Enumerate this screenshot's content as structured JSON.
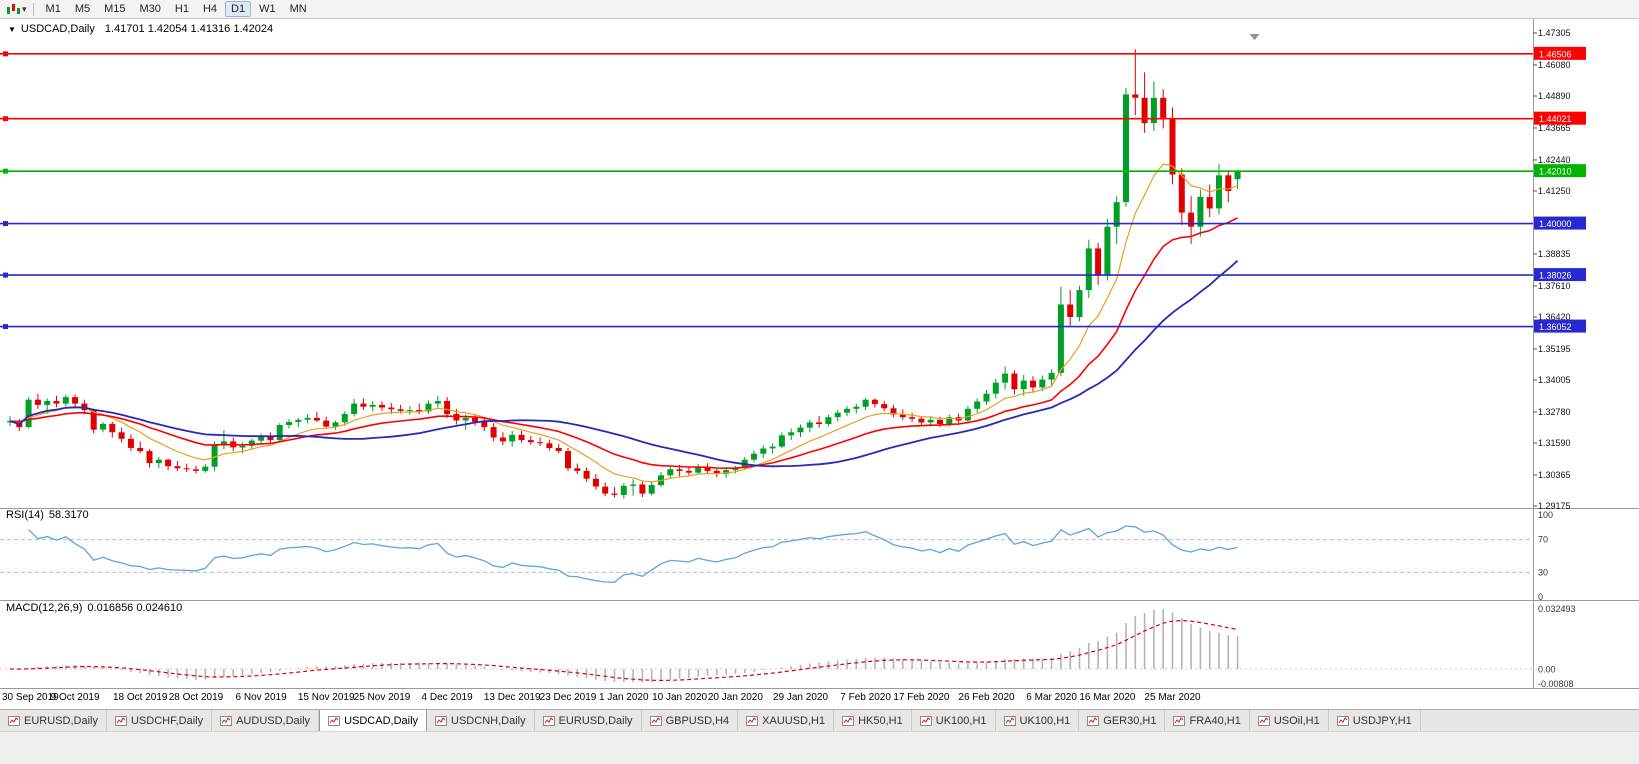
{
  "icons": {
    "chart_menu": "▼",
    "dropdown_caret": "▾"
  },
  "toolbar": {
    "timeframes": [
      {
        "label": "M1",
        "active": false
      },
      {
        "label": "M5",
        "active": false
      },
      {
        "label": "M15",
        "active": false
      },
      {
        "label": "M30",
        "active": false
      },
      {
        "label": "H1",
        "active": false
      },
      {
        "label": "H4",
        "active": false
      },
      {
        "label": "D1",
        "active": true
      },
      {
        "label": "W1",
        "active": false
      },
      {
        "label": "MN",
        "active": false
      }
    ]
  },
  "chart": {
    "title": "USDCAD,Daily",
    "ohlc": "1.41701 1.42054 1.41316 1.42024"
  },
  "indicators": {
    "rsi": {
      "name": "RSI(14)",
      "value": "58.3170"
    },
    "macd": {
      "name": "MACD(12,26,9)",
      "value": "0.016856 0.024610"
    }
  },
  "chart_data": {
    "type": "candlestick",
    "symbol": "USDCAD",
    "timeframe": "Daily",
    "quote": {
      "open": 1.41701,
      "high": 1.42054,
      "low": 1.41316,
      "close": 1.42024
    },
    "up_color": "#00a028",
    "down_color": "#e00000",
    "price_axis": {
      "ticks": [
        "1.47305",
        "1.46080",
        "1.44890",
        "1.43665",
        "1.42440",
        "1.41250",
        "1.38835",
        "1.37610",
        "1.36420",
        "1.35195",
        "1.34005",
        "1.32780",
        "1.31590",
        "1.30365",
        "1.29175"
      ]
    },
    "horizontal_lines": [
      {
        "price": 1.46506,
        "label": "1.46506",
        "color": "#ff0000"
      },
      {
        "price": 1.44021,
        "label": "1.44021",
        "color": "#ff0000"
      },
      {
        "price": 1.4201,
        "label": "1.42010",
        "color": "#00b400"
      },
      {
        "price": 1.4,
        "label": "1.40000",
        "color": "#2828d0"
      },
      {
        "price": 1.38026,
        "label": "1.38026",
        "color": "#2828d0"
      },
      {
        "price": 1.36052,
        "label": "1.36052",
        "color": "#2828d0"
      }
    ],
    "moving_averages": [
      {
        "name": "ma-fast",
        "type": "ema",
        "period": 9,
        "color": "#e8a020",
        "width": 1.2
      },
      {
        "name": "ma-medium",
        "type": "ema",
        "period": 21,
        "color": "#ff0000",
        "width": 1.6
      },
      {
        "name": "ma-slow",
        "type": "sma",
        "period": 30,
        "color": "#2828bb",
        "width": 1.8
      }
    ],
    "x_axis": {
      "labels": [
        {
          "text": "30 Sep 2019",
          "index": 0
        },
        {
          "text": "9 Oct 2019",
          "index": 7
        },
        {
          "text": "18 Oct 2019",
          "index": 14
        },
        {
          "text": "28 Oct 2019",
          "index": 20
        },
        {
          "text": "6 Nov 2019",
          "index": 27
        },
        {
          "text": "15 Nov 2019",
          "index": 34
        },
        {
          "text": "25 Nov 2019",
          "index": 40
        },
        {
          "text": "4 Dec 2019",
          "index": 47
        },
        {
          "text": "13 Dec 2019",
          "index": 54
        },
        {
          "text": "23 Dec 2019",
          "index": 60
        },
        {
          "text": "1 Jan 2020",
          "index": 66
        },
        {
          "text": "10 Jan 2020",
          "index": 72
        },
        {
          "text": "20 Jan 2020",
          "index": 78
        },
        {
          "text": "29 Jan 2020",
          "index": 85
        },
        {
          "text": "7 Feb 2020",
          "index": 92
        },
        {
          "text": "17 Feb 2020",
          "index": 98
        },
        {
          "text": "26 Feb 2020",
          "index": 105
        },
        {
          "text": "6 Mar 2020",
          "index": 112
        },
        {
          "text": "16 Mar 2020",
          "index": 118
        },
        {
          "text": "25 Mar 2020",
          "index": 125
        }
      ]
    },
    "rsi_panel": {
      "label": "RSI(14)",
      "current": 58.317,
      "period": 14,
      "levels": [
        100,
        70,
        30,
        0
      ],
      "line_color": "#5aa7d8"
    },
    "macd_panel": {
      "label": "MACD(12,26,9)",
      "main": 0.016856,
      "signal": 0.02461,
      "fast": 12,
      "slow": 26,
      "signal_period": 9,
      "axis_labels": [
        "0.032493",
        "0.00",
        "-0.00808"
      ],
      "histogram_color": "#b4b4b4",
      "signal_color": "#e00000"
    },
    "candles": [
      [
        "2019-09-30",
        1.3238,
        1.3262,
        1.3224,
        1.3243
      ],
      [
        "2019-10-01",
        1.3243,
        1.3251,
        1.3205,
        1.322
      ],
      [
        "2019-10-02",
        1.322,
        1.3335,
        1.3215,
        1.3325
      ],
      [
        "2019-10-03",
        1.3325,
        1.3348,
        1.329,
        1.3305
      ],
      [
        "2019-10-04",
        1.3305,
        1.333,
        1.3271,
        1.332
      ],
      [
        "2019-10-07",
        1.332,
        1.334,
        1.3296,
        1.331
      ],
      [
        "2019-10-08",
        1.331,
        1.3345,
        1.33,
        1.3335
      ],
      [
        "2019-10-09",
        1.3335,
        1.3345,
        1.33,
        1.331
      ],
      [
        "2019-10-10",
        1.331,
        1.3325,
        1.327,
        1.3285
      ],
      [
        "2019-10-11",
        1.3285,
        1.329,
        1.3195,
        1.321
      ],
      [
        "2019-10-14",
        1.321,
        1.324,
        1.32,
        1.3232
      ],
      [
        "2019-10-15",
        1.3232,
        1.324,
        1.318,
        1.32
      ],
      [
        "2019-10-16",
        1.32,
        1.3218,
        1.316,
        1.3175
      ],
      [
        "2019-10-17",
        1.3175,
        1.3192,
        1.3128,
        1.314
      ],
      [
        "2019-10-18",
        1.314,
        1.3165,
        1.312,
        1.3128
      ],
      [
        "2019-10-21",
        1.3128,
        1.3135,
        1.3065,
        1.3082
      ],
      [
        "2019-10-22",
        1.3082,
        1.3105,
        1.3063,
        1.3095
      ],
      [
        "2019-10-23",
        1.3095,
        1.31,
        1.3055,
        1.307
      ],
      [
        "2019-10-24",
        1.307,
        1.309,
        1.3052,
        1.3062
      ],
      [
        "2019-10-25",
        1.3062,
        1.308,
        1.3048,
        1.3058
      ],
      [
        "2019-10-28",
        1.3058,
        1.3072,
        1.3042,
        1.3052
      ],
      [
        "2019-10-29",
        1.3052,
        1.3078,
        1.3045,
        1.3068
      ],
      [
        "2019-10-30",
        1.3068,
        1.3165,
        1.305,
        1.315
      ],
      [
        "2019-10-31",
        1.315,
        1.3208,
        1.3135,
        1.3165
      ],
      [
        "2019-11-01",
        1.3165,
        1.318,
        1.3128,
        1.3142
      ],
      [
        "2019-11-04",
        1.3142,
        1.316,
        1.312,
        1.3148
      ],
      [
        "2019-11-05",
        1.3148,
        1.3175,
        1.3135,
        1.3168
      ],
      [
        "2019-11-06",
        1.3168,
        1.3195,
        1.3155,
        1.3182
      ],
      [
        "2019-11-07",
        1.3182,
        1.32,
        1.3158,
        1.317
      ],
      [
        "2019-11-08",
        1.317,
        1.3235,
        1.3162,
        1.3228
      ],
      [
        "2019-11-11",
        1.3228,
        1.325,
        1.3215,
        1.324
      ],
      [
        "2019-11-12",
        1.324,
        1.3255,
        1.322,
        1.3248
      ],
      [
        "2019-11-13",
        1.3248,
        1.327,
        1.3235,
        1.3255
      ],
      [
        "2019-11-14",
        1.3255,
        1.3278,
        1.324,
        1.3245
      ],
      [
        "2019-11-15",
        1.3245,
        1.326,
        1.3215,
        1.3222
      ],
      [
        "2019-11-18",
        1.3222,
        1.3245,
        1.321,
        1.3238
      ],
      [
        "2019-11-19",
        1.3238,
        1.328,
        1.3225,
        1.327
      ],
      [
        "2019-11-20",
        1.327,
        1.3328,
        1.326,
        1.331
      ],
      [
        "2019-11-21",
        1.331,
        1.333,
        1.3285,
        1.3298
      ],
      [
        "2019-11-22",
        1.3298,
        1.332,
        1.328,
        1.3305
      ],
      [
        "2019-11-25",
        1.3305,
        1.3318,
        1.3282,
        1.3295
      ],
      [
        "2019-11-26",
        1.3295,
        1.3312,
        1.327,
        1.3288
      ],
      [
        "2019-11-27",
        1.3288,
        1.3305,
        1.3272,
        1.3282
      ],
      [
        "2019-11-28",
        1.3282,
        1.33,
        1.3268,
        1.3285
      ],
      [
        "2019-11-29",
        1.3285,
        1.331,
        1.327,
        1.328
      ],
      [
        "2019-12-02",
        1.328,
        1.3322,
        1.327,
        1.331
      ],
      [
        "2019-12-03",
        1.331,
        1.334,
        1.3295,
        1.332
      ],
      [
        "2019-12-04",
        1.332,
        1.3335,
        1.3255,
        1.327
      ],
      [
        "2019-12-05",
        1.327,
        1.329,
        1.323,
        1.3245
      ],
      [
        "2019-12-06",
        1.3245,
        1.3268,
        1.321,
        1.3255
      ],
      [
        "2019-12-09",
        1.3255,
        1.327,
        1.3225,
        1.324
      ],
      [
        "2019-12-10",
        1.324,
        1.3255,
        1.3205,
        1.322
      ],
      [
        "2019-12-11",
        1.322,
        1.3235,
        1.3165,
        1.318
      ],
      [
        "2019-12-12",
        1.318,
        1.32,
        1.315,
        1.3165
      ],
      [
        "2019-12-13",
        1.3165,
        1.3205,
        1.3145,
        1.319
      ],
      [
        "2019-12-16",
        1.319,
        1.3205,
        1.316,
        1.317
      ],
      [
        "2019-12-17",
        1.317,
        1.3186,
        1.3152,
        1.3162
      ],
      [
        "2019-12-18",
        1.3162,
        1.318,
        1.3148,
        1.3158
      ],
      [
        "2019-12-19",
        1.3158,
        1.3172,
        1.313,
        1.314
      ],
      [
        "2019-12-20",
        1.314,
        1.3155,
        1.312,
        1.3128
      ],
      [
        "2019-12-23",
        1.3128,
        1.314,
        1.3052,
        1.3062
      ],
      [
        "2019-12-24",
        1.3062,
        1.308,
        1.304,
        1.3052
      ],
      [
        "2019-12-26",
        1.3052,
        1.3065,
        1.301,
        1.3022
      ],
      [
        "2019-12-27",
        1.3022,
        1.304,
        1.298,
        1.2992
      ],
      [
        "2019-12-30",
        1.2992,
        1.3008,
        1.2955,
        1.2965
      ],
      [
        "2019-12-31",
        1.2965,
        1.299,
        1.295,
        1.296
      ],
      [
        "2020-01-02",
        1.296,
        1.3005,
        1.2945,
        1.2995
      ],
      [
        "2020-01-03",
        1.2995,
        1.302,
        1.2957,
        1.3
      ],
      [
        "2020-01-06",
        1.3,
        1.301,
        1.2952,
        1.2965
      ],
      [
        "2020-01-07",
        1.2965,
        1.3012,
        1.2958,
        1.2998
      ],
      [
        "2020-01-08",
        1.2998,
        1.3048,
        1.299,
        1.3035
      ],
      [
        "2020-01-09",
        1.3035,
        1.307,
        1.3025,
        1.3058
      ],
      [
        "2020-01-10",
        1.3058,
        1.3075,
        1.303,
        1.3052
      ],
      [
        "2020-01-13",
        1.3052,
        1.307,
        1.3035,
        1.3045
      ],
      [
        "2020-01-14",
        1.3045,
        1.3078,
        1.3038,
        1.3068
      ],
      [
        "2020-01-15",
        1.3068,
        1.3082,
        1.3042,
        1.3052
      ],
      [
        "2020-01-16",
        1.3052,
        1.3065,
        1.3028,
        1.304
      ],
      [
        "2020-01-17",
        1.304,
        1.3062,
        1.3025,
        1.3055
      ],
      [
        "2020-01-20",
        1.3055,
        1.3072,
        1.3042,
        1.3065
      ],
      [
        "2020-01-21",
        1.3065,
        1.3105,
        1.3055,
        1.3095
      ],
      [
        "2020-01-22",
        1.3095,
        1.313,
        1.3085,
        1.3118
      ],
      [
        "2020-01-23",
        1.3118,
        1.315,
        1.3102,
        1.3138
      ],
      [
        "2020-01-24",
        1.3138,
        1.3158,
        1.3118,
        1.3145
      ],
      [
        "2020-01-27",
        1.3145,
        1.32,
        1.314,
        1.3188
      ],
      [
        "2020-01-28",
        1.3188,
        1.3215,
        1.317,
        1.32
      ],
      [
        "2020-01-29",
        1.32,
        1.323,
        1.3182,
        1.3218
      ],
      [
        "2020-01-30",
        1.3218,
        1.3248,
        1.32,
        1.3238
      ],
      [
        "2020-01-31",
        1.3238,
        1.3262,
        1.3218,
        1.3232
      ],
      [
        "2020-02-03",
        1.3232,
        1.3268,
        1.3222,
        1.3258
      ],
      [
        "2020-02-04",
        1.3258,
        1.3285,
        1.3242,
        1.3275
      ],
      [
        "2020-02-05",
        1.3275,
        1.33,
        1.3262,
        1.329
      ],
      [
        "2020-02-06",
        1.329,
        1.331,
        1.3272,
        1.3298
      ],
      [
        "2020-02-07",
        1.3298,
        1.3332,
        1.3285,
        1.3325
      ],
      [
        "2020-02-10",
        1.3325,
        1.333,
        1.3295,
        1.3308
      ],
      [
        "2020-02-11",
        1.3308,
        1.332,
        1.3282,
        1.3292
      ],
      [
        "2020-02-12",
        1.3292,
        1.3305,
        1.3258,
        1.3268
      ],
      [
        "2020-02-13",
        1.3268,
        1.3288,
        1.3248,
        1.3258
      ],
      [
        "2020-02-14",
        1.3258,
        1.3275,
        1.324,
        1.3252
      ],
      [
        "2020-02-17",
        1.3252,
        1.3262,
        1.3228,
        1.3238
      ],
      [
        "2020-02-18",
        1.3238,
        1.3262,
        1.3222,
        1.3248
      ],
      [
        "2020-02-19",
        1.3248,
        1.326,
        1.322,
        1.3232
      ],
      [
        "2020-02-20",
        1.3232,
        1.3268,
        1.3222,
        1.3258
      ],
      [
        "2020-02-21",
        1.3258,
        1.3272,
        1.3228,
        1.3245
      ],
      [
        "2020-02-24",
        1.3245,
        1.3302,
        1.3238,
        1.329
      ],
      [
        "2020-02-25",
        1.329,
        1.333,
        1.3275,
        1.3318
      ],
      [
        "2020-02-26",
        1.3318,
        1.3362,
        1.3305,
        1.3348
      ],
      [
        "2020-02-27",
        1.3348,
        1.3405,
        1.333,
        1.339
      ],
      [
        "2020-02-28",
        1.339,
        1.3452,
        1.3365,
        1.3425
      ],
      [
        "2020-03-02",
        1.3425,
        1.3438,
        1.3345,
        1.3365
      ],
      [
        "2020-03-03",
        1.3365,
        1.342,
        1.334,
        1.3398
      ],
      [
        "2020-03-04",
        1.3398,
        1.3415,
        1.3352,
        1.3372
      ],
      [
        "2020-03-05",
        1.3372,
        1.3418,
        1.3358,
        1.3402
      ],
      [
        "2020-03-06",
        1.3402,
        1.3442,
        1.338,
        1.3428
      ],
      [
        "2020-03-09",
        1.3428,
        1.3758,
        1.3415,
        1.369
      ],
      [
        "2020-03-10",
        1.369,
        1.3745,
        1.3608,
        1.3642
      ],
      [
        "2020-03-11",
        1.3642,
        1.3762,
        1.3625,
        1.3745
      ],
      [
        "2020-03-12",
        1.3745,
        1.3938,
        1.3715,
        1.3905
      ],
      [
        "2020-03-13",
        1.3905,
        1.3925,
        1.3765,
        1.3802
      ],
      [
        "2020-03-16",
        1.3802,
        1.4018,
        1.3782,
        1.3988
      ],
      [
        "2020-03-17",
        1.3988,
        1.4105,
        1.3922,
        1.4082
      ],
      [
        "2020-03-18",
        1.4082,
        1.452,
        1.4065,
        1.4495
      ],
      [
        "2020-03-19",
        1.4495,
        1.4668,
        1.4415,
        1.4482
      ],
      [
        "2020-03-20",
        1.4482,
        1.458,
        1.4348,
        1.4385
      ],
      [
        "2020-03-23",
        1.4385,
        1.4545,
        1.4355,
        1.4482
      ],
      [
        "2020-03-24",
        1.4482,
        1.4515,
        1.4365,
        1.4405
      ],
      [
        "2020-03-25",
        1.4405,
        1.4445,
        1.415,
        1.4188
      ],
      [
        "2020-03-26",
        1.4188,
        1.4212,
        1.3995,
        1.4042
      ],
      [
        "2020-03-27",
        1.4042,
        1.4105,
        1.3922,
        1.3988
      ],
      [
        "2020-03-30",
        1.3988,
        1.413,
        1.395,
        1.4102
      ],
      [
        "2020-03-31",
        1.4102,
        1.415,
        1.4025,
        1.4058
      ],
      [
        "2020-04-01",
        1.4058,
        1.4228,
        1.4035,
        1.4185
      ],
      [
        "2020-04-02",
        1.4185,
        1.4205,
        1.4082,
        1.4125
      ],
      [
        "2020-04-03",
        1.41701,
        1.42054,
        1.41316,
        1.42024
      ]
    ]
  },
  "tabs": [
    {
      "label": "EURUSD,Daily",
      "active": false
    },
    {
      "label": "USDCHF,Daily",
      "active": false
    },
    {
      "label": "AUDUSD,Daily",
      "active": false
    },
    {
      "label": "USDCAD,Daily",
      "active": true
    },
    {
      "label": "USDCNH,Daily",
      "active": false
    },
    {
      "label": "EURUSD,Daily",
      "active": false
    },
    {
      "label": "GBPUSD,H4",
      "active": false
    },
    {
      "label": "XAUUSD,H1",
      "active": false
    },
    {
      "label": "HK50,H1",
      "active": false
    },
    {
      "label": "UK100,H1",
      "active": false
    },
    {
      "label": "UK100,H1",
      "active": false
    },
    {
      "label": "GER30,H1",
      "active": false
    },
    {
      "label": "FRA40,H1",
      "active": false
    },
    {
      "label": "USOil,H1",
      "active": false
    },
    {
      "label": "USDJPY,H1",
      "active": false
    }
  ]
}
